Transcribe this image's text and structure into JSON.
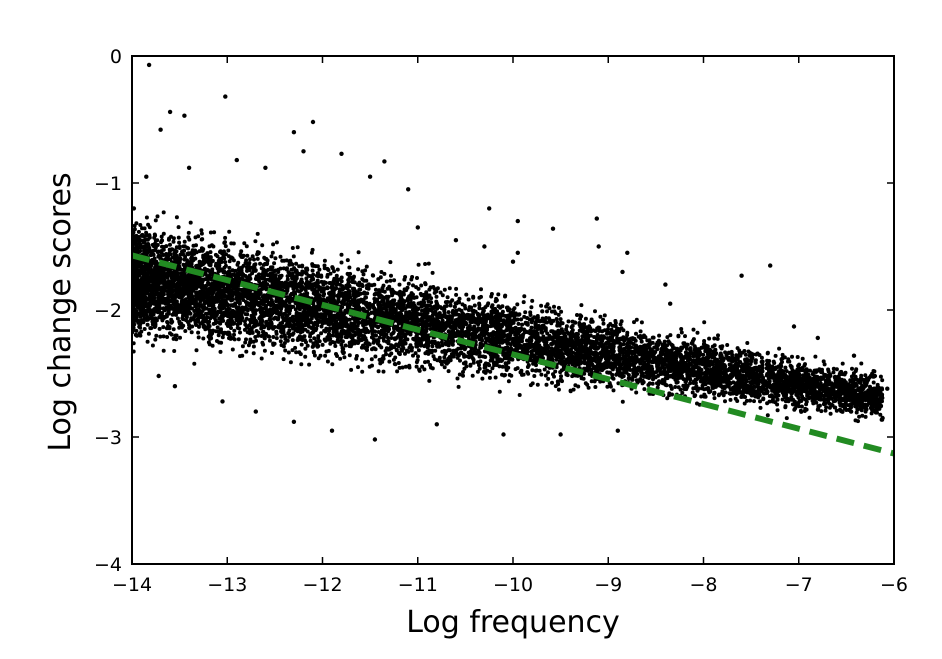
{
  "chart_data": {
    "type": "scatter",
    "title": "",
    "xlabel": "Log frequency",
    "ylabel": "Log change scores",
    "xlim": [
      -14,
      -6
    ],
    "ylim": [
      -4,
      0
    ],
    "xticks": [
      -14,
      -13,
      -12,
      -11,
      -10,
      -9,
      -8,
      -7,
      -6
    ],
    "yticks": [
      -4,
      -3,
      -2,
      -1,
      0
    ],
    "xtick_labels": [
      "−14",
      "−13",
      "−12",
      "−11",
      "−10",
      "−9",
      "−8",
      "−7",
      "−6"
    ],
    "ytick_labels": [
      "−4",
      "−3",
      "−2",
      "−1",
      "0"
    ],
    "grid": false,
    "legend": "none",
    "point_color": "#000000",
    "series": [
      {
        "kind": "points",
        "color": "#000000",
        "points": [
          [
            -13.82,
            -0.07
          ],
          [
            -13.6,
            -0.44
          ],
          [
            -13.45,
            -0.47
          ],
          [
            -13.02,
            -0.32
          ],
          [
            -13.7,
            -0.58
          ],
          [
            -13.85,
            -0.95
          ],
          [
            -13.4,
            -0.88
          ],
          [
            -12.9,
            -0.82
          ],
          [
            -12.6,
            -0.88
          ],
          [
            -12.3,
            -0.6
          ],
          [
            -12.1,
            -0.52
          ],
          [
            -12.2,
            -0.75
          ],
          [
            -11.8,
            -0.77
          ],
          [
            -11.5,
            -0.95
          ],
          [
            -11.35,
            -0.83
          ],
          [
            -11.1,
            -1.05
          ],
          [
            -10.25,
            -1.2
          ],
          [
            -9.95,
            -1.3
          ],
          [
            -9.58,
            -1.36
          ],
          [
            -9.12,
            -1.28
          ],
          [
            -9.1,
            -1.5
          ],
          [
            -8.8,
            -1.55
          ],
          [
            -8.85,
            -1.7
          ],
          [
            -8.4,
            -1.8
          ],
          [
            -8.35,
            -1.95
          ],
          [
            -7.6,
            -1.73
          ],
          [
            -7.3,
            -1.65
          ],
          [
            -7.05,
            -2.13
          ],
          [
            -6.8,
            -2.22
          ],
          [
            -6.42,
            -2.36
          ],
          [
            -6.2,
            -2.52
          ],
          [
            -6.07,
            -2.62
          ],
          [
            -6.12,
            -2.85
          ],
          [
            -6.45,
            -2.8
          ],
          [
            -6.6,
            -2.65
          ],
          [
            -7.3,
            -2.6
          ],
          [
            -8.1,
            -2.5
          ],
          [
            -8.9,
            -2.95
          ],
          [
            -9.5,
            -2.98
          ],
          [
            -10.1,
            -2.98
          ],
          [
            -10.8,
            -2.9
          ],
          [
            -11.45,
            -3.02
          ],
          [
            -11.9,
            -2.95
          ],
          [
            -12.3,
            -2.88
          ],
          [
            -12.7,
            -2.8
          ],
          [
            -13.05,
            -2.72
          ],
          [
            -13.55,
            -2.6
          ],
          [
            -13.72,
            -2.52
          ],
          [
            -13.95,
            -2.2
          ],
          [
            -13.98,
            -1.2
          ],
          [
            -10.0,
            -1.62
          ],
          [
            -9.95,
            -1.55
          ],
          [
            -10.3,
            -1.5
          ],
          [
            -10.6,
            -1.45
          ],
          [
            -11.0,
            -1.35
          ]
        ]
      }
    ],
    "fit_line": {
      "color": "#228B22",
      "style": "dashed",
      "x": [
        -14,
        -6
      ],
      "y": [
        -1.57,
        -3.13
      ]
    }
  }
}
